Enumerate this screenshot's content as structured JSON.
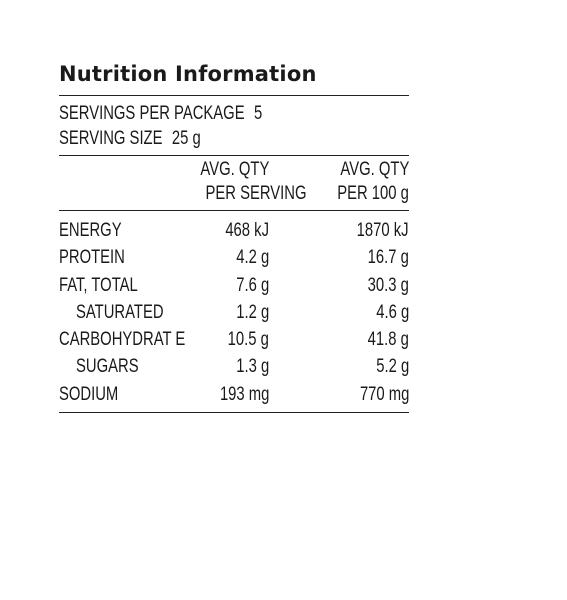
{
  "panel": {
    "title": "Nutrition Information",
    "servings_label": "SERVINGS PER PACKAGE",
    "servings_value": "5",
    "serving_size_label": "SERVING SIZE",
    "serving_size_value": "25 g",
    "columns": {
      "per_serving_line1": "AVG. QTY",
      "per_serving_line2": "PER SERVING",
      "per_100g_line1": "AVG. QTY",
      "per_100g_line2": "PER 100 g"
    },
    "rows": [
      {
        "name": "ENERGY",
        "per_serving": "468 kJ",
        "per_100g": "1870 kJ"
      },
      {
        "name": "PROTEIN",
        "per_serving": "4.2 g",
        "per_100g": "16.7 g"
      },
      {
        "name": "FAT, TOTAL",
        "per_serving": "7.6 g",
        "per_100g": "30.3 g"
      },
      {
        "name": "SATURATED",
        "per_serving": "1.2 g",
        "per_100g": "4.6 g"
      },
      {
        "name": "CARBOHYDRAT E",
        "per_serving": "10.5 g",
        "per_100g": "41.8 g"
      },
      {
        "name": "SUGARS",
        "per_serving": "1.3 g",
        "per_100g": "5.2 g"
      },
      {
        "name": "SODIUM",
        "per_serving": "193 mg",
        "per_100g": "770 mg"
      }
    ]
  }
}
